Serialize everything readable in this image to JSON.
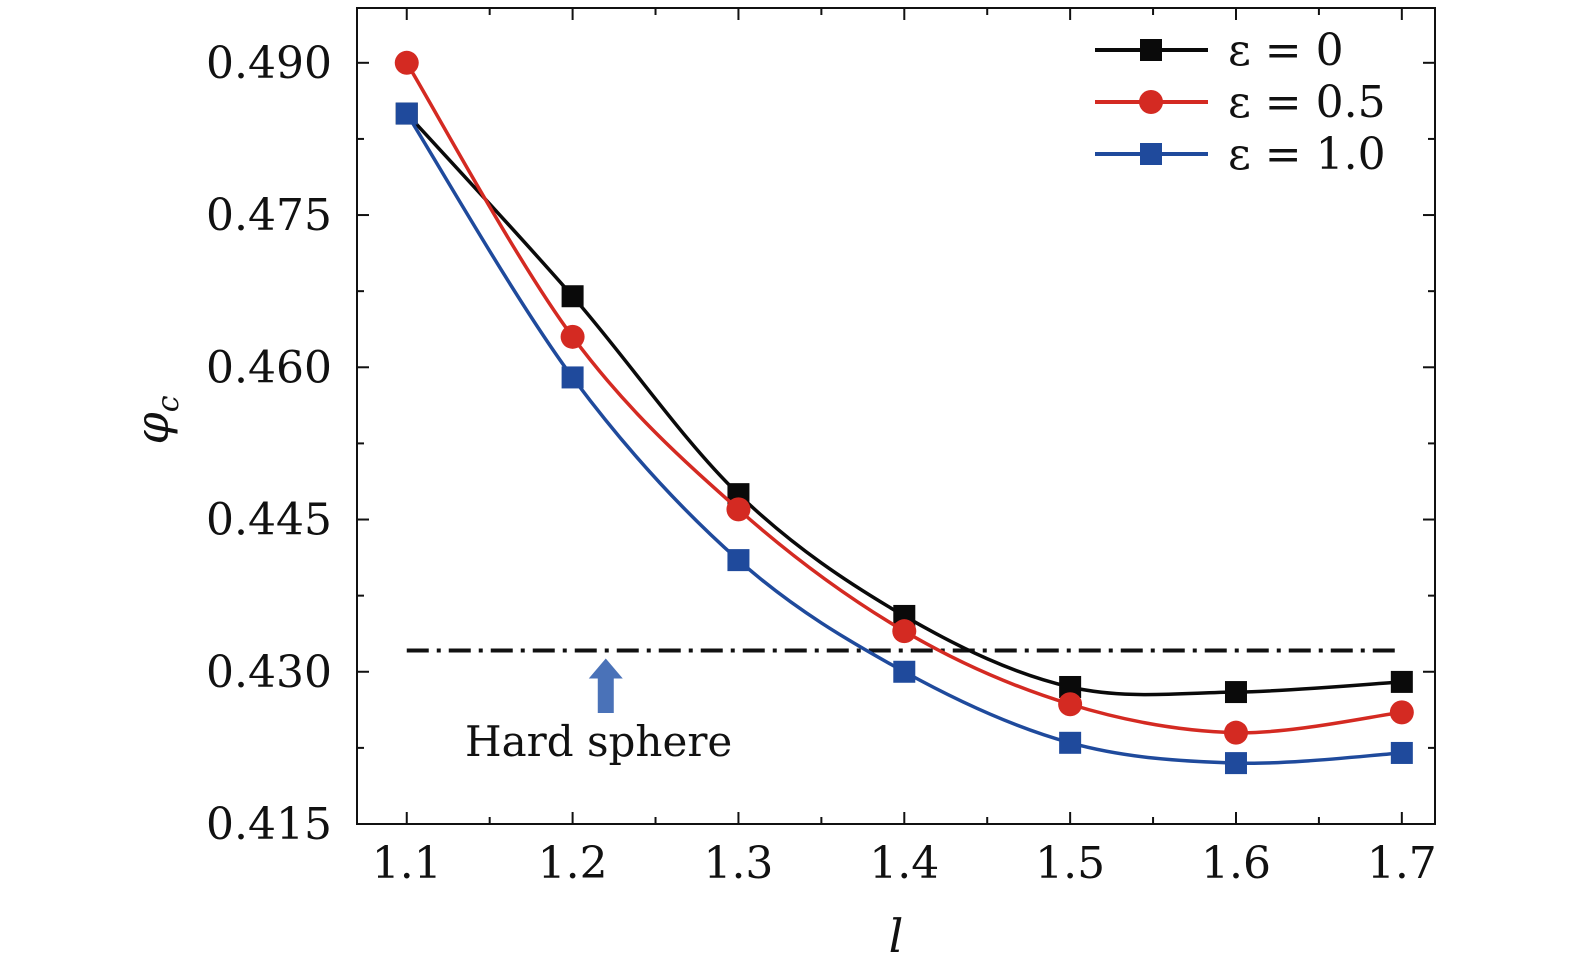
{
  "chart_data": {
    "type": "line",
    "title": "",
    "xlabel": "l",
    "ylabel": "φ",
    "ylabel_subscript": "c",
    "xlim": [
      1.07,
      1.72
    ],
    "ylim": [
      0.415,
      0.4954
    ],
    "x_ticks": [
      1.1,
      1.2,
      1.3,
      1.4,
      1.5,
      1.6,
      1.7
    ],
    "x_tick_labels": [
      "1.1",
      "1.2",
      "1.3",
      "1.4",
      "1.5",
      "1.6",
      "1.7"
    ],
    "y_ticks": [
      0.415,
      0.43,
      0.445,
      0.46,
      0.475,
      0.49
    ],
    "y_tick_labels": [
      "0.415",
      "0.430",
      "0.445",
      "0.460",
      "0.475",
      "0.490"
    ],
    "x": [
      1.1,
      1.2,
      1.3,
      1.4,
      1.5,
      1.6,
      1.7
    ],
    "series": [
      {
        "name": "ε = 0",
        "values": [
          0.485,
          0.467,
          0.4475,
          0.4355,
          0.4285,
          0.428,
          0.429
        ],
        "color": "#0a0a0a",
        "marker": "square"
      },
      {
        "name": "ε = 0.5",
        "values": [
          0.49,
          0.463,
          0.446,
          0.434,
          0.4268,
          0.424,
          0.426
        ],
        "color": "#d42a22",
        "marker": "circle"
      },
      {
        "name": "ε = 1.0",
        "values": [
          0.485,
          0.459,
          0.441,
          0.43,
          0.423,
          0.421,
          0.422
        ],
        "color": "#1f4a9c",
        "marker": "square"
      }
    ],
    "reference_line": {
      "y": 0.4321,
      "style": "dash-dot",
      "color": "#111111"
    },
    "annotation": {
      "text": "Hard sphere",
      "arrow_x": 1.22,
      "arrow_color": "#4a72b8"
    },
    "legend": {
      "position": "top-right"
    },
    "grid": false
  }
}
